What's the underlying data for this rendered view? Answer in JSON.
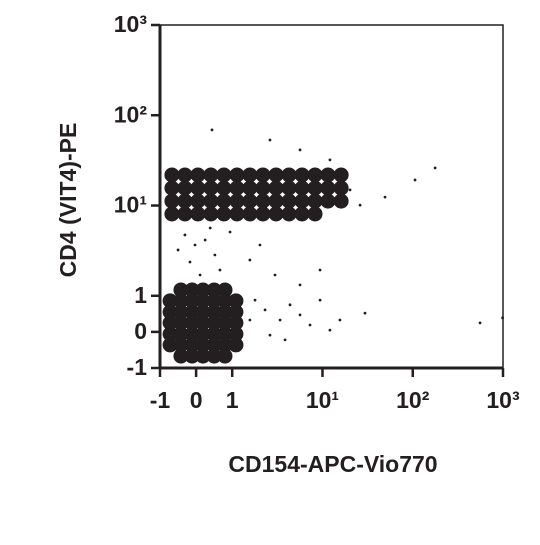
{
  "chart_data": {
    "type": "scatter",
    "x_label": "CD154-APC-Vio770",
    "y_label": "CD4 (VIT4)-PE",
    "xscale": "biexponential",
    "yscale": "biexponential",
    "xlim": [
      -1,
      1000
    ],
    "ylim": [
      -1,
      1000
    ],
    "xticks": [
      -1,
      0,
      1,
      {
        "value": 10,
        "label": "10¹"
      },
      {
        "value": 100,
        "label": "10²"
      },
      {
        "value": 1000,
        "label": "10³"
      }
    ],
    "yticks": [
      -1,
      0,
      1,
      {
        "value": 10,
        "label": "10¹"
      },
      {
        "value": 100,
        "label": "10²"
      },
      {
        "value": 1000,
        "label": "10³"
      }
    ],
    "grid": false,
    "series": [
      {
        "color": "#231f20",
        "marker_size": 7.5,
        "x": [
          -0.42,
          -0.11,
          0.19,
          0.5,
          0.8,
          -0.72,
          -0.42,
          -0.11,
          0.19,
          0.5,
          0.8,
          1.1,
          -0.72,
          -0.42,
          -0.11,
          0.19,
          0.5,
          0.8,
          1.1,
          -0.72,
          -0.42,
          -0.11,
          0.19,
          0.5,
          0.8,
          1.1,
          -0.72,
          -0.42,
          -0.11,
          0.19,
          0.5,
          0.8,
          1.1,
          -0.72,
          -0.42,
          -0.11,
          0.19,
          0.5,
          0.8,
          1.1,
          -0.42,
          -0.11,
          0.19,
          0.5,
          0.8,
          -0.67,
          -0.31,
          0.05,
          0.41,
          0.77,
          1.13,
          1.57,
          2.19,
          3.06,
          4.26,
          5.94,
          8.27,
          11.5,
          16.1,
          -0.67,
          -0.31,
          0.05,
          0.41,
          0.77,
          1.13,
          1.57,
          2.19,
          3.06,
          4.26,
          5.94,
          8.27,
          11.5,
          16.1,
          -0.67,
          -0.31,
          0.05,
          0.41,
          0.77,
          1.13,
          1.57,
          2.19,
          3.06,
          4.26,
          5.94,
          8.27,
          11.5,
          16.1,
          -0.67,
          -0.31,
          0.05,
          0.41,
          0.77,
          1.13,
          1.57,
          2.19,
          3.06,
          4.26,
          5.94,
          8.27
        ],
        "values": [
          1.16,
          1.16,
          1.16,
          1.16,
          1.16,
          0.86,
          0.86,
          0.86,
          0.86,
          0.86,
          0.86,
          0.86,
          0.55,
          0.55,
          0.55,
          0.55,
          0.55,
          0.55,
          0.55,
          0.25,
          0.25,
          0.25,
          0.25,
          0.25,
          0.25,
          0.25,
          -0.06,
          -0.06,
          -0.06,
          -0.06,
          -0.06,
          -0.06,
          -0.06,
          -0.36,
          -0.36,
          -0.36,
          -0.36,
          -0.36,
          -0.36,
          -0.36,
          -0.67,
          -0.67,
          -0.67,
          -0.67,
          -0.67,
          21.8,
          21.8,
          21.8,
          21.8,
          21.8,
          21.8,
          21.8,
          21.8,
          21.8,
          21.8,
          21.8,
          21.8,
          21.8,
          21.8,
          15.6,
          15.6,
          15.6,
          15.6,
          15.6,
          15.6,
          15.6,
          15.6,
          15.6,
          15.6,
          15.6,
          15.6,
          15.6,
          15.6,
          11.2,
          11.2,
          11.2,
          11.2,
          11.2,
          11.2,
          11.2,
          11.2,
          11.2,
          11.2,
          11.2,
          11.2,
          11.2,
          11.2,
          8.06,
          8.06,
          8.06,
          8.06,
          8.06,
          8.06,
          8.06,
          8.06,
          8.06,
          8.06,
          8.06,
          8.06
        ]
      },
      {
        "color": "#231f20",
        "marker_size": 1.4,
        "x": [
          -0.31,
          -0.03,
          0.25,
          0.52,
          -0.17,
          0.66,
          0.11,
          0.94,
          -0.5,
          0.39,
          1.79,
          2.31,
          3.39,
          4.37,
          5.64,
          7.28,
          9.4,
          2.62,
          3.85,
          12.1,
          15.6,
          1.57,
          49.3,
          106,
          177,
          26.1,
          20.2,
          12.1,
          2.62,
          0.44,
          5.64,
          1.57,
          2.98,
          5.64,
          9.4,
          2.03,
          29.6,
          557,
          990
        ],
        "values": [
          4.72,
          3.65,
          4.15,
          2.83,
          2.37,
          1.93,
          1.7,
          5.09,
          3.22,
          5.64,
          0.88,
          0.61,
          0.33,
          0.75,
          0.47,
          0.19,
          0.88,
          -0.09,
          -0.22,
          0.05,
          0.33,
          0.33,
          12.4,
          19.2,
          26.1,
          10.1,
          14.9,
          32.0,
          53.2,
          68.8,
          41.3,
          2.49,
          1.7,
          1.32,
          1.93,
          3.65,
          0.52,
          0.25,
          0.39
        ]
      }
    ]
  }
}
